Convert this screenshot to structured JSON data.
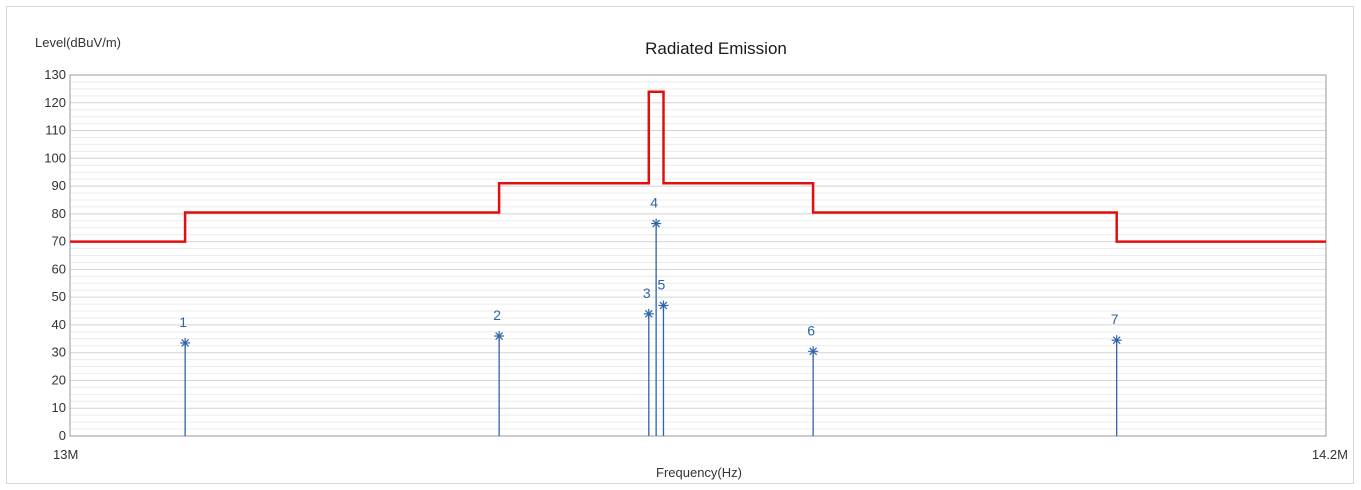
{
  "chart_data": {
    "type": "line",
    "title": "Radiated Emission",
    "ylabel": "Level(dBuV/m)",
    "xlabel": "Frequency(Hz)",
    "x_tick_labels": [
      "13M",
      "14.2M"
    ],
    "xlim": [
      13.0,
      14.2
    ],
    "ylim": [
      0,
      130
    ],
    "y_ticks": [
      0,
      10,
      20,
      30,
      40,
      50,
      60,
      70,
      80,
      90,
      100,
      110,
      120,
      130
    ],
    "grid": true,
    "series": [
      {
        "kind": "limit",
        "color": "#e01010",
        "points": [
          [
            13.0,
            70
          ],
          [
            13.11,
            70
          ],
          [
            13.11,
            80.5
          ],
          [
            13.41,
            80.5
          ],
          [
            13.41,
            91
          ],
          [
            13.553,
            91
          ],
          [
            13.553,
            124
          ],
          [
            13.567,
            124
          ],
          [
            13.567,
            91
          ],
          [
            13.71,
            91
          ],
          [
            13.71,
            80.5
          ],
          [
            14.0,
            80.5
          ],
          [
            14.0,
            70
          ],
          [
            14.2,
            70
          ]
        ]
      },
      {
        "kind": "markers",
        "color": "#2e64a8",
        "points": [
          {
            "label": "1",
            "x": 13.11,
            "y": 33.5
          },
          {
            "label": "2",
            "x": 13.41,
            "y": 36
          },
          {
            "label": "3",
            "x": 13.553,
            "y": 44
          },
          {
            "label": "4",
            "x": 13.56,
            "y": 76.5
          },
          {
            "label": "5",
            "x": 13.567,
            "y": 47
          },
          {
            "label": "6",
            "x": 13.71,
            "y": 30.5
          },
          {
            "label": "7",
            "x": 14.0,
            "y": 34.5
          }
        ]
      }
    ]
  }
}
